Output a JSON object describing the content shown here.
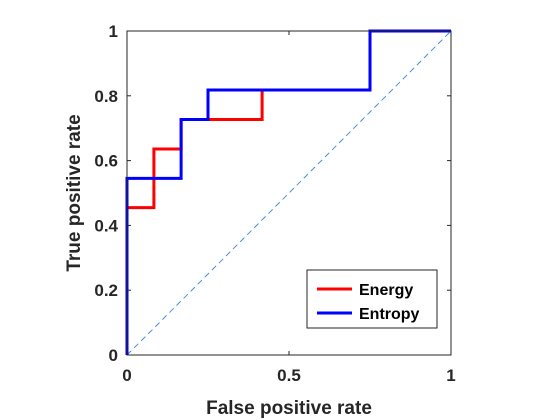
{
  "chart_data": {
    "type": "line",
    "title": "",
    "xlabel": "False positive rate",
    "ylabel": "True positive rate",
    "xlim": [
      0,
      1
    ],
    "ylim": [
      0,
      1
    ],
    "x_ticks": [
      0,
      0.5,
      1
    ],
    "x_tick_labels": [
      "0",
      "0.5",
      "1"
    ],
    "y_ticks": [
      0,
      0.2,
      0.4,
      0.6,
      0.8,
      1
    ],
    "y_tick_labels": [
      "0",
      "0.2",
      "0.4",
      "0.6",
      "0.8",
      "1"
    ],
    "grid": false,
    "legend_position": "bottom-right",
    "series": [
      {
        "name": "Energy",
        "color": "#ff0000",
        "x": [
          0,
          0,
          0.083,
          0.083,
          0.167,
          0.167,
          0.25,
          0.25,
          0.417,
          0.417,
          0.75,
          0.75,
          1
        ],
        "y": [
          0,
          0.455,
          0.455,
          0.636,
          0.636,
          0.727,
          0.727,
          0.727,
          0.727,
          0.818,
          0.818,
          1,
          1
        ]
      },
      {
        "name": "Entropy",
        "color": "#0000ff",
        "x": [
          0,
          0,
          0.167,
          0.167,
          0.25,
          0.25,
          0.75,
          0.75,
          1
        ],
        "y": [
          0,
          0.545,
          0.545,
          0.727,
          0.727,
          0.818,
          0.818,
          1,
          1
        ]
      }
    ],
    "reference_line": {
      "x": [
        0,
        1
      ],
      "y": [
        0,
        1
      ],
      "color": "#4a90d9",
      "style": "dashed"
    }
  }
}
